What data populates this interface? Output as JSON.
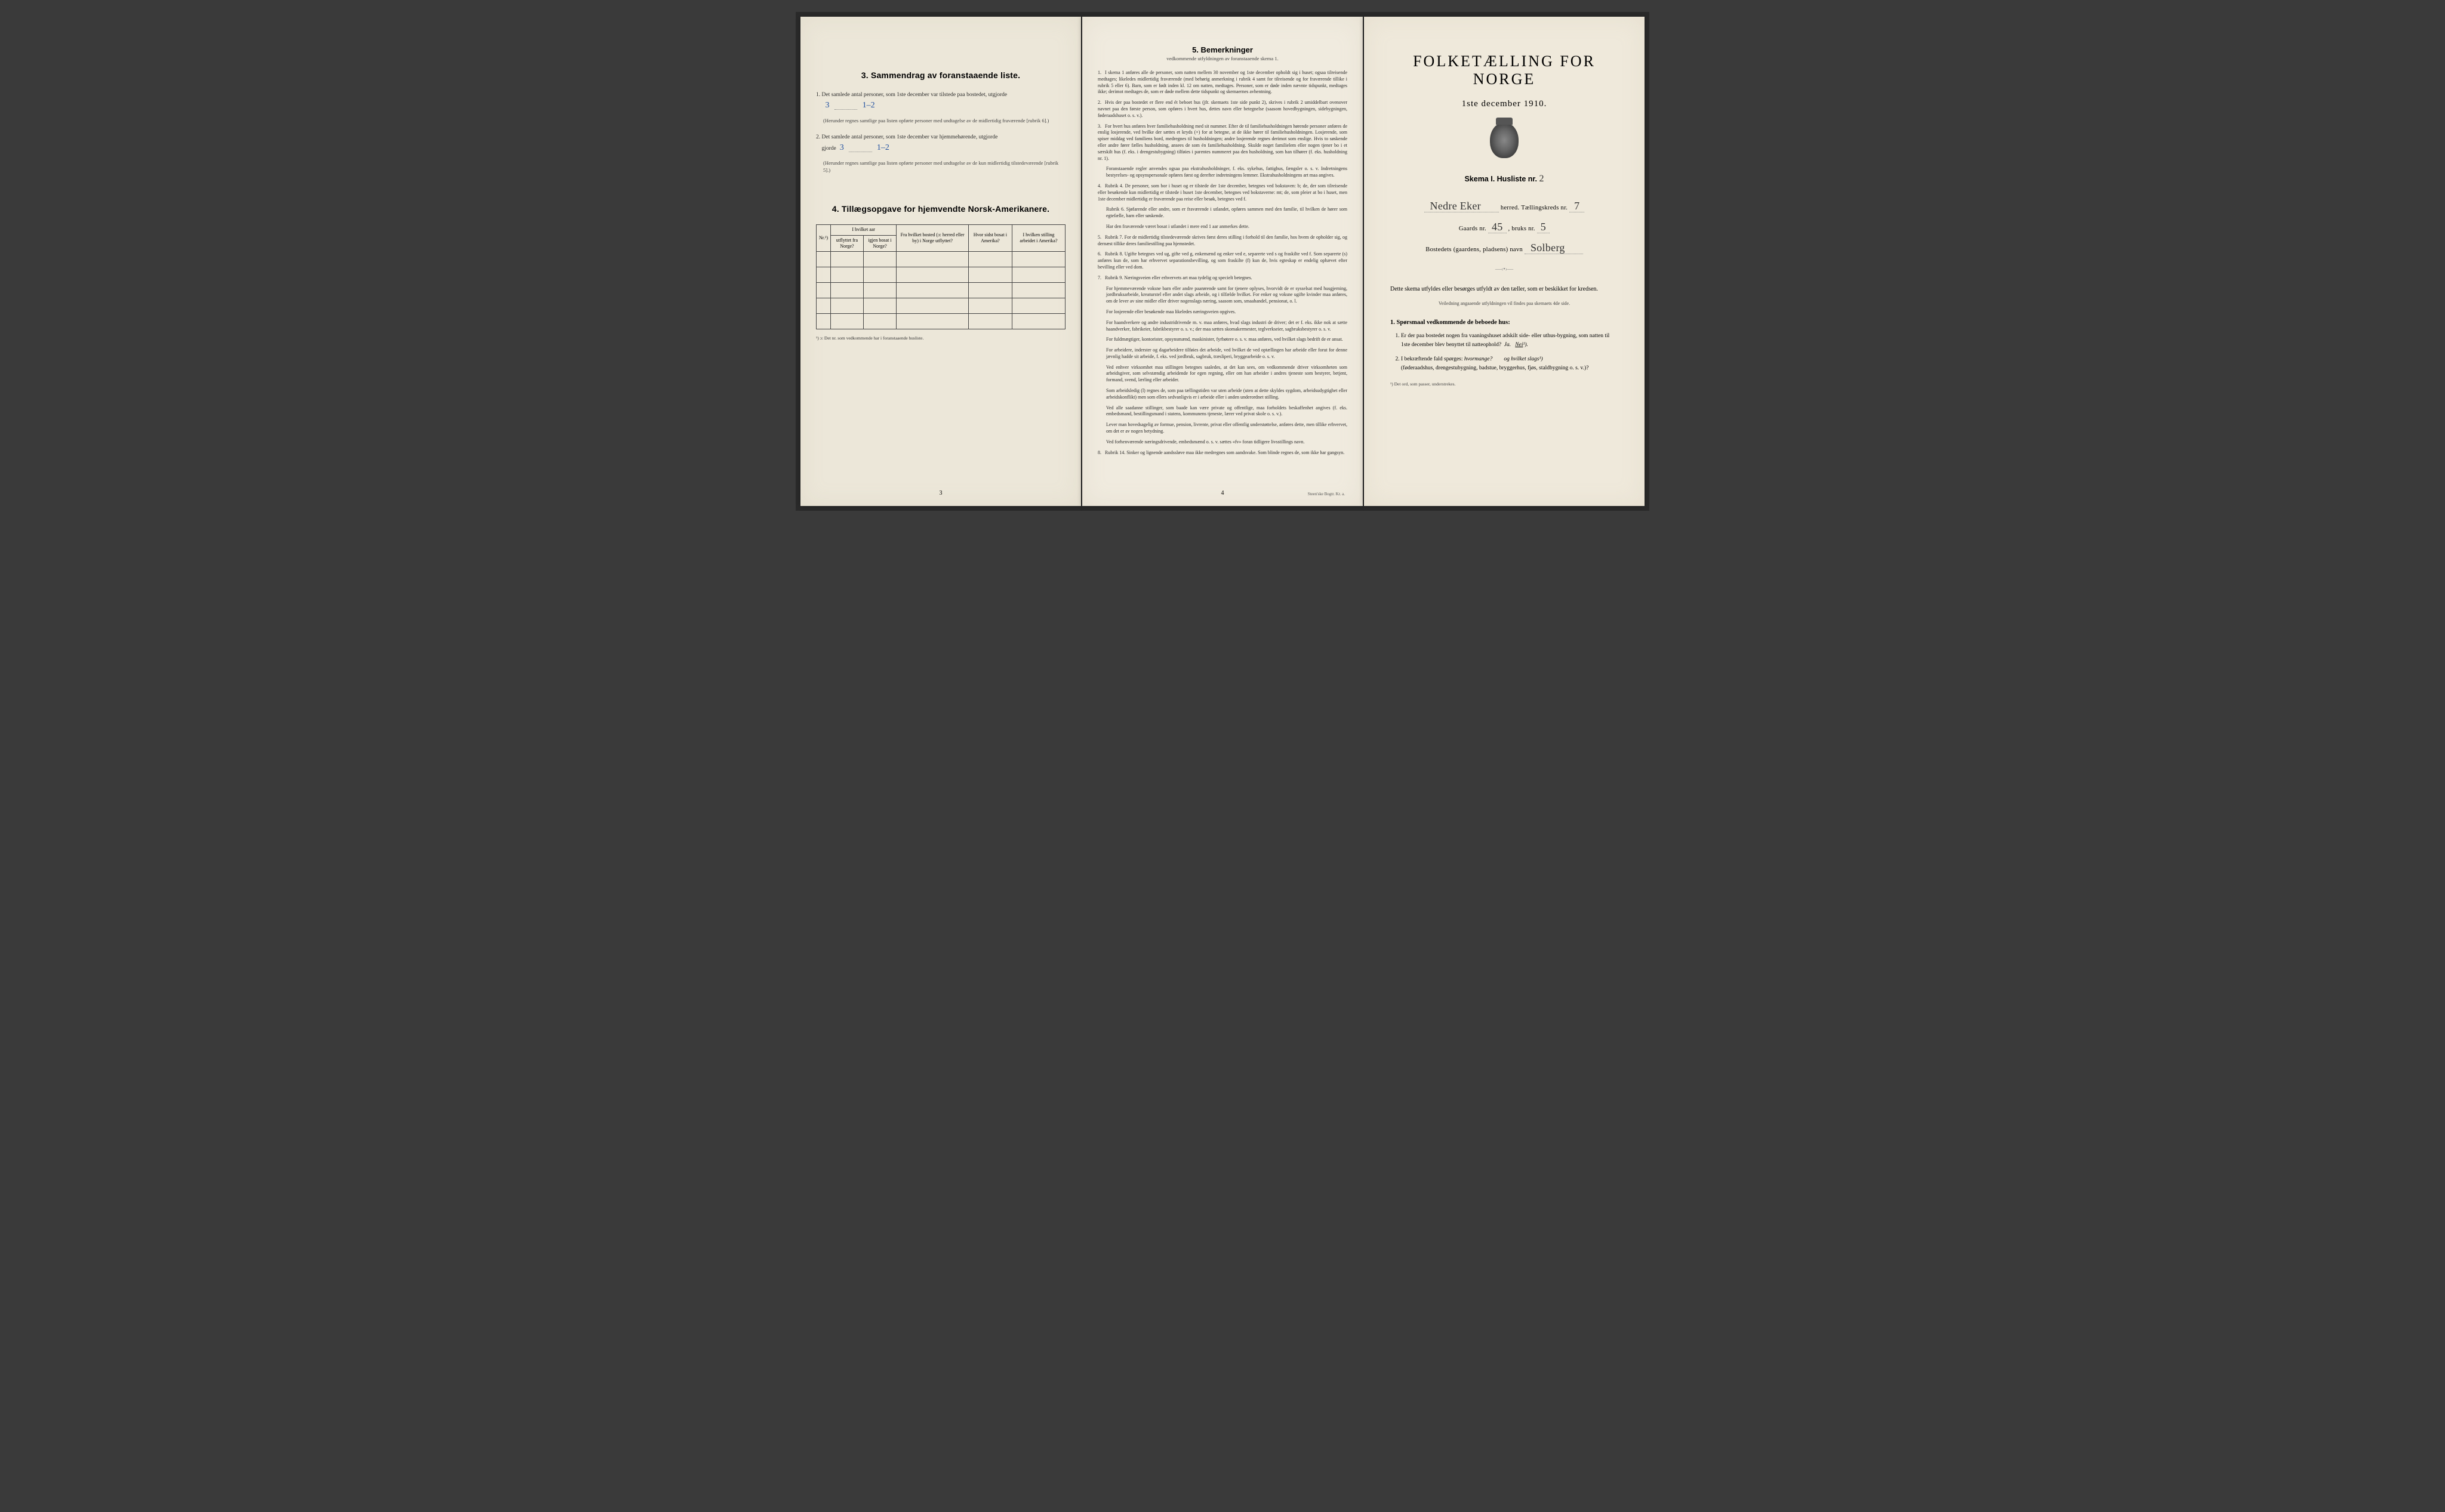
{
  "section3": {
    "title": "3.   Sammendrag av foranstaaende liste.",
    "item1": "Det samlede antal personer, som 1ste december var tilstede paa bostedet, utgjorde",
    "val1": "3",
    "val1b": "1–2",
    "sub1": "(Herunder regnes samtlige paa listen opførte personer med undtagelse av de midlertidig fraværende [rubrik 6].)",
    "item2": "Det samlede antal personer, som 1ste december var hjemmehørende, utgjorde",
    "val2": "3",
    "val2b": "1–2",
    "sub2": "(Herunder regnes samtlige paa listen opførte personer med undtagelse av de kun midlertidig tilstedeværende [rubrik 5].)"
  },
  "section4": {
    "title": "4.   Tillægsopgave for hjemvendte Norsk-Amerikanere.",
    "headers": {
      "nr": "Nr.¹)",
      "col1a": "I hvilket aar",
      "col1b": "utflyttet fra Norge?",
      "col1c": "igjen bosat i Norge?",
      "col2": "Fra hvilket bosted (ɔ: herred eller by) i Norge utflyttet?",
      "col3": "Hvor sidst bosat i Amerika?",
      "col4": "I hvilken stilling arbeidet i Amerika?"
    },
    "footnote": "¹) ɔ: Det nr. som vedkommende har i foranstaaende husliste."
  },
  "page3num": "3",
  "section5": {
    "title": "5.   Bemerkninger",
    "sub": "vedkommende utfyldningen av foranstaaende skema 1.",
    "items": [
      "I skema 1 anføres alle de personer, som natten mellem 30 november og 1ste december opholdt sig i huset; ogsaa tilreisende medtages; likeledes midlertidig fraværende (med behørig anmerkning i rubrik 4 samt for tilreisende og for fraværende tillike i rubrik 5 eller 6). Barn, som er født inden kl. 12 om natten, medtages. Personer, som er døde inden nævnte tidspunkt, medtages ikke; derimot medtages de, som er døde mellem dette tidspunkt og skemaernes avhentning.",
      "Hvis der paa bostedet er flere end ét beboet hus (jfr. skemaets 1ste side punkt 2), skrives i rubrik 2 umiddelbart ovenover navnet paa den første person, som opføres i hvert hus, dettes navn eller betegnelse (saasom hovedbygningen, sidebygningen, føderaadshuset o. s. v.).",
      "For hvert hus anføres hver familiehusholdning med sit nummer. Efter de til familiehusholdningen hørende personer anføres de enslig losjerende, ved hvilke der sættes et kryds (×) for at betegne, at de ikke hører til familiehusholdningen. Losjerende, som spiser middag ved familiens bord, medregnes til husholdningen; andre losjerende regnes derimot som enslige. Hvis to søskende eller andre fører fælles husholdning, ansees de som én familiehusholdning. Skulde noget familielem eller nogen tjener bo i et særskilt hus (f. eks. i drengestubygning) tilføies i parentes nummeret paa den husholdning, som han tilhører (f. eks. husholdning nr. 1).",
      "Rubrik 4. De personer, som bor i huset og er tilstede der 1ste december, betegnes ved bokstaven: b; de, der som tilreisende eller besøkende kun midlertidig er tilstede i huset 1ste december, betegnes ved bokstaverne: mt; de, som pleier at bo i huset, men 1ste december midlertidig er fraværende paa reise eller besøk, betegnes ved f.",
      "Rubrik 7. For de midlertidig tilstedeværende skrives først deres stilling i forhold til den familie, hos hvem de opholder sig, og dernæst tillike deres familiestilling paa hjemstedet.",
      "Rubrik 8. Ugifte betegnes ved ug, gifte ved g, enkemænd og enker ved e, separerte ved s og fraskilte ved f. Som separerte (s) anføres kun de, som har erhvervet separationsbevilling, og som fraskilte (f) kun de, hvis egteskap er endelig ophævet efter bevilling eller ved dom.",
      "Rubrik 9. Næringsveien eller erhvervets art maa tydelig og specielt betegnes.",
      "Rubrik 14. Sinker og lignende aandssløve maa ikke medregnes som aandsvake. Som blinde regnes de, som ikke har gangsyn."
    ],
    "extra3": "Foranstaaende regler anvendes ogsaa paa ekstrahusholdninger, f. eks. sykehus, fattighus, fængsler o. s. v. Indretningens bestyrelses- og opsynspersonale opføres først og derefter indretningens lemmer. Ekstrahusholdningens art maa angives.",
    "extra4a": "Rubrik 6. Sjøfarende eller andre, som er fraværende i utlandet, opføres sammen med den familie, til hvilken de hører som egtefælle, barn eller søskende.",
    "extra4b": "Har den fraværende været bosat i utlandet i mere end 1 aar anmerkes dette.",
    "extra7a": "For hjemmeværende voksne barn eller andre paarørende samt for tjenere oplyses, hvorvidt de er sysselsat med husgjerning, jordbruksarbeide, kreaturstel eller andet slags arbeide, og i tilfælde hvilket. For enker og voksne ugifte kvinder maa anføres, om de lever av sine midler eller driver nogenslags næring, saasom som, smaahandel, pensionat, o. l.",
    "extra7b": "For losjerende eller besøkende maa likeledes næringsveien opgives.",
    "extra7c": "For haandverkere og andre industridrivende m. v. maa anføres, hvad slags industri de driver; det er f. eks. ikke nok at sætte haandverker, fabrikeier, fabrikbestyrer o. s. v.; der maa sættes skomakermester, teglverkseier, sagbruksbestyrer o. s. v.",
    "extra7d": "For fuldmægtiger, kontorister, opsynsmænd, maskinister, fyrbøtere o. s. v. maa anføres, ved hvilket slags bedrift de er ansat.",
    "extra7e": "For arbeidere, inderster og dagarbeidere tilføies det arbeide, ved hvilket de ved optællingen har arbeide eller forut for denne jævnlig hadde sit arbeide, f. eks. ved jordbruk, sagbruk, træsliperi, bryggearbeide o. s. v.",
    "extra7f": "Ved enhver virksomhet maa stillingen betegnes saaledes, at det kan sees, om vedkommende driver virksomheten som arbeidsgiver, som selvstændig arbeidende for egen regning, eller om han arbeider i andres tjeneste som bestyrer, betjent, formand, svend, lærling eller arbeider.",
    "extra7g": "Som arbeidsledig (l) regnes de, som paa tællingstiden var uten arbeide (uten at dette skyldes sygdom, arbeidsudygtighet eller arbeidskonflikt) men som ellers sedvanligvis er i arbeide eller i anden underordnet stilling.",
    "extra7h": "Ved alle saadanne stillinger, som baade kan være private og offentlige, maa forholdets beskaffenhet angives (f. eks. embedsmand, bestillingsmand i statens, kommunens tjeneste, lærer ved privat skole o. s. v.).",
    "extra7i": "Lever man hovedsagelig av formue, pension, livrente, privat eller offentlig understøttelse, anføres dette, men tillike erhvervet, om det er av nogen betydning.",
    "extra7j": "Ved forhenværende næringsdrivende, embedsmænd o. s. v. sættes «fv» foran tidligere livsstillings navn."
  },
  "page4num": "4",
  "printer": "Steen'ske Bogtr.  Kr. a.",
  "cover": {
    "title": "FOLKETÆLLING FOR NORGE",
    "date": "1ste december 1910.",
    "skema": "Skema I.   Husliste nr.",
    "skema_nr": "2",
    "herred_val": "Nedre Eker",
    "herred_lbl": "herred.   Tællingskreds nr.",
    "kreds_nr": "7",
    "gaards_lbl": "Gaards nr.",
    "gaards_nr": "45",
    "bruks_lbl": ", bruks nr.",
    "bruks_nr": "5",
    "bosted_lbl": "Bostedets (gaardens, pladsens) navn",
    "bosted_val": "Solberg",
    "instr": "Dette skema utfyldes eller besørges utfyldt av den tæller, som er beskikket for kredsen.",
    "instr_sub": "Veiledning angaaende utfyldningen vil findes paa skemaets 4de side.",
    "q_head": "1. Spørsmaal vedkommende de beboede hus:",
    "q1": "Er der paa bostedet nogen fra vaaningshuset adskilt side- eller uthus-bygning, som natten til 1ste december blev benyttet til natteophold?",
    "q1_ans": "Ja.   Nei¹).",
    "q2a": "I bekræftende fald spørges:",
    "q2b": "hvormange?",
    "q2c": "og hvilket slags¹)",
    "q2d": "(føderaadshus, drengestubygning, badstue, bryggerhus, fjøs, staldbygning o. s. v.)?",
    "tiny": "¹) Det ord, som passer, understrekes."
  }
}
